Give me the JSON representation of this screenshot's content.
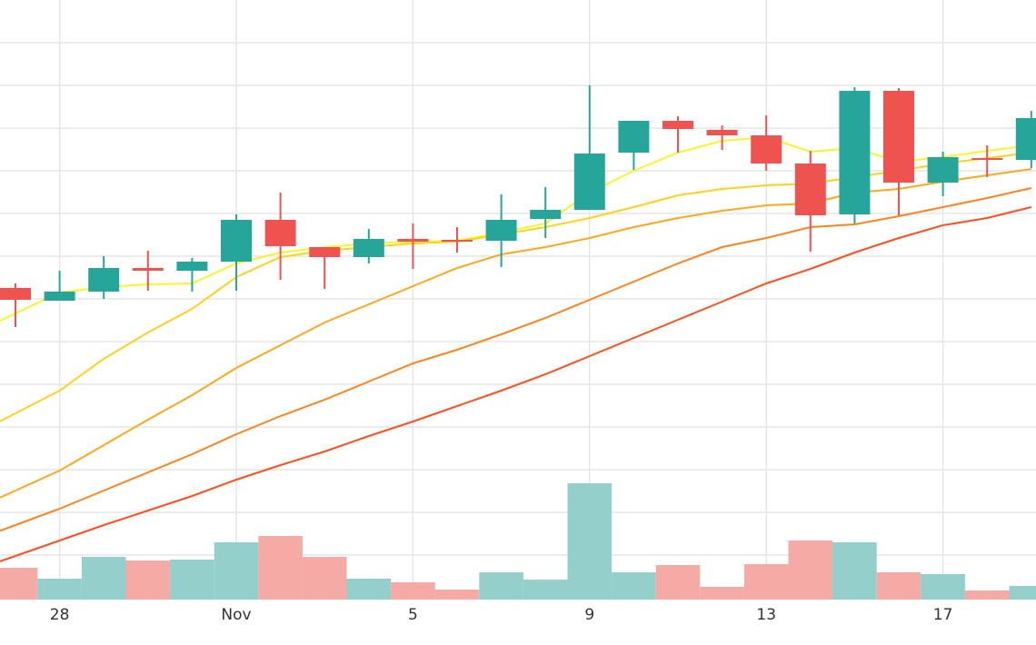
{
  "chart_data": {
    "type": "candlestick",
    "categories": [
      null,
      "28",
      null,
      null,
      null,
      "Nov",
      null,
      null,
      null,
      "5",
      null,
      null,
      null,
      "9",
      null,
      null,
      null,
      "13",
      null,
      null,
      null,
      "17",
      null,
      null
    ],
    "ylim": [
      0,
      660
    ],
    "yticks": [
      49,
      96,
      143,
      190,
      237,
      284,
      331,
      378,
      425,
      472,
      519,
      566,
      613
    ],
    "y2lim": [
      0,
      660
    ],
    "grid": true,
    "up_color": "#26a69a",
    "down_color": "#ef5350",
    "candles": {
      "open": [
        343,
        329,
        339,
        365,
        362,
        372,
        418,
        388,
        377,
        397,
        396,
        395,
        419,
        429,
        492,
        527,
        517,
        511,
        480,
        424,
        560,
        459,
        486,
        484
      ],
      "high": [
        348,
        362,
        378,
        384,
        376,
        424,
        448,
        388,
        408,
        414,
        410,
        446,
        454,
        566,
        527,
        532,
        522,
        533,
        494,
        564,
        563,
        493,
        500,
        538
      ],
      "low": [
        300,
        329,
        331,
        340,
        339,
        340,
        352,
        342,
        370,
        364,
        382,
        366,
        398,
        429,
        473,
        492,
        495,
        472,
        383,
        414,
        423,
        444,
        465,
        475
      ],
      "close": [
        330,
        339,
        365,
        362,
        372,
        418,
        389,
        377,
        397,
        394,
        395,
        418,
        429,
        491,
        527,
        518,
        511,
        480,
        423,
        560,
        459,
        487,
        484,
        530
      ]
    },
    "volume": {
      "axis": "y2",
      "up_color": "#94cfcc",
      "down_color": "#f5aaa5",
      "values": [
        35,
        23,
        47,
        43,
        44,
        63,
        70,
        47,
        23,
        19,
        11,
        30,
        22,
        128,
        30,
        38,
        14,
        39,
        65,
        63,
        30,
        28,
        10,
        15
      ]
    },
    "lines": [
      {
        "color": "#f7f52e",
        "values": [
          315,
          338,
          344,
          347,
          348,
          370,
          382,
          388,
          392,
          394,
          395,
          404,
          414,
          448,
          472,
          492,
          505,
          509,
          493,
          497,
          482,
          487,
          494,
          500
        ]
      },
      {
        "color": "#ffd21f",
        "values": [
          205,
          230,
          265,
          294,
          320,
          355,
          377,
          384,
          388,
          392,
          394,
          402,
          410,
          420,
          432,
          445,
          452,
          456,
          458,
          465,
          472,
          480,
          486,
          492
        ]
      },
      {
        "color": "#ffa81f",
        "values": [
          120,
          142,
          170,
          198,
          225,
          255,
          280,
          305,
          325,
          345,
          365,
          380,
          388,
          398,
          410,
          420,
          428,
          434,
          436,
          448,
          452,
          460,
          467,
          474
        ]
      },
      {
        "color": "#ff8420",
        "values": [
          82,
          100,
          120,
          140,
          160,
          182,
          202,
          220,
          240,
          260,
          275,
          292,
          310,
          330,
          350,
          370,
          388,
          398,
          410,
          413,
          422,
          432,
          442,
          453
        ]
      },
      {
        "color": "#ff5020",
        "values": [
          48,
          65,
          82,
          98,
          114,
          132,
          148,
          163,
          180,
          196,
          213,
          230,
          248,
          268,
          288,
          308,
          328,
          348,
          364,
          382,
          398,
          412,
          420,
          432
        ]
      }
    ]
  }
}
